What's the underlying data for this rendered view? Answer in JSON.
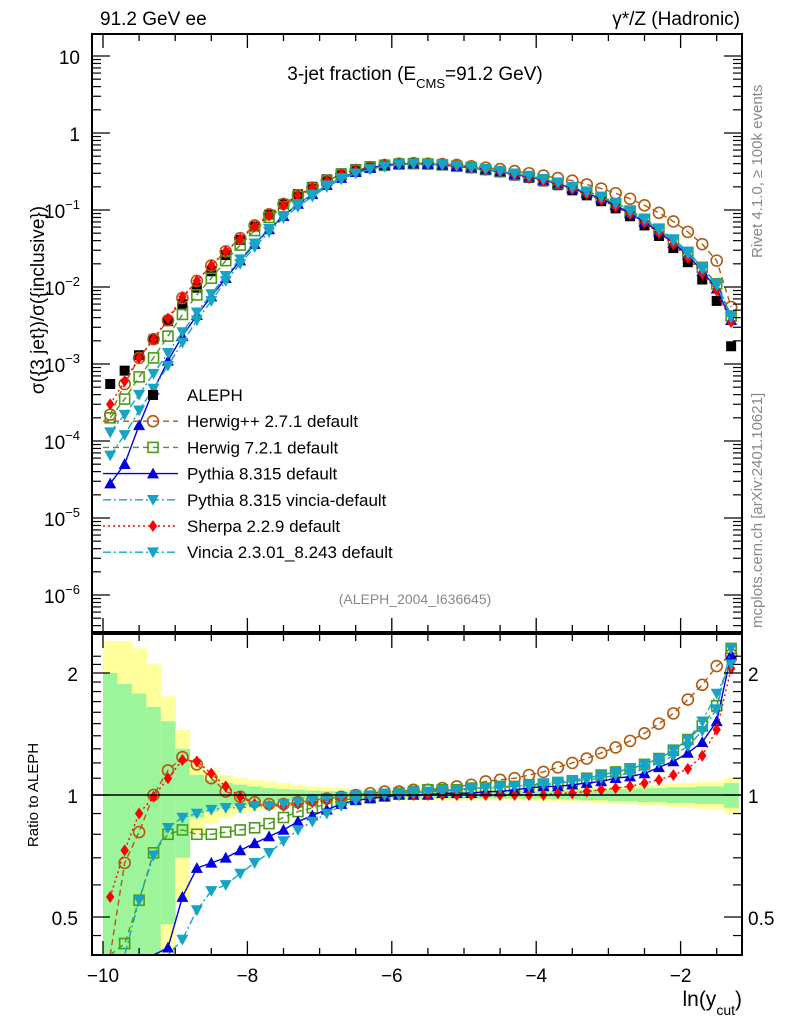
{
  "header": {
    "left_label": "91.2 GeV ee",
    "right_label": "γ*/Z (Hadronic)"
  },
  "side_labels": {
    "rivet": "Rivet 4.1.0, ≥ 100k events",
    "mcplots": "mcplots.cern.ch [arXiv:2401.10621]"
  },
  "colors": {
    "aleph": "#000000",
    "herwigpp": "#b05a10",
    "herwig7": "#4c9a1a",
    "pythia": "#0000e0",
    "pythia_vincia": "#17a3c6",
    "sherpa": "#ff0000",
    "vincia": "#17a3c6",
    "band_inner": "#9cf59a",
    "band_outer": "#ffff9c"
  },
  "chart_data": [
    {
      "type": "line",
      "panel": "main",
      "title_main": "3-jet fraction (E",
      "title_sub": "CMS",
      "title_tail": "=91.2 GeV)",
      "ylabel": "σ({3 jet})/σ({inclusive})",
      "xlabel_main": "ln(y",
      "xlabel_sub": "cut",
      "xlabel_tail": ")",
      "yscale": "log",
      "xlim": [
        -10.15,
        -1.1
      ],
      "ylim": [
        3e-07,
        20
      ],
      "ytick_labels": [
        {
          "v": 10,
          "base": "10",
          "exp": ""
        },
        {
          "v": 1,
          "base": "1",
          "exp": ""
        },
        {
          "v": 0.1,
          "base": "10",
          "exp": "−1"
        },
        {
          "v": 0.01,
          "base": "10",
          "exp": "−2"
        },
        {
          "v": 0.001,
          "base": "10",
          "exp": "−3"
        },
        {
          "v": 0.0001,
          "base": "10",
          "exp": "−4"
        },
        {
          "v": 1e-05,
          "base": "10",
          "exp": "−5"
        },
        {
          "v": 1e-06,
          "base": "10",
          "exp": "−6"
        }
      ],
      "xtick_labels": [
        "−10",
        "−8",
        "−6",
        "−4",
        "−2"
      ],
      "xtick_values": [
        -10,
        -8,
        -6,
        -4,
        -2
      ],
      "annotation": "(ALEPH_2004_I636645)",
      "legend_position": "middle-left",
      "x": [
        -9.9,
        -9.7,
        -9.5,
        -9.3,
        -9.1,
        -8.9,
        -8.7,
        -8.5,
        -8.3,
        -8.1,
        -7.9,
        -7.7,
        -7.5,
        -7.3,
        -7.1,
        -6.9,
        -6.7,
        -6.5,
        -6.3,
        -6.1,
        -5.9,
        -5.7,
        -5.5,
        -5.3,
        -5.1,
        -4.9,
        -4.7,
        -4.5,
        -4.3,
        -4.1,
        -3.9,
        -3.7,
        -3.5,
        -3.3,
        -3.1,
        -2.9,
        -2.7,
        -2.5,
        -2.3,
        -2.1,
        -1.9,
        -1.7,
        -1.5,
        -1.3
      ],
      "series": [
        {
          "name": "ALEPH",
          "key": "aleph",
          "marker": "square-filled",
          "line": "none",
          "values": [
            0.00055,
            0.00082,
            0.0013,
            0.0021,
            0.0036,
            0.006,
            0.0098,
            0.016,
            0.026,
            0.041,
            0.061,
            0.087,
            0.12,
            0.16,
            0.2,
            0.25,
            0.3,
            0.34,
            0.37,
            0.39,
            0.4,
            0.4,
            0.39,
            0.38,
            0.37,
            0.35,
            0.33,
            0.31,
            0.28,
            0.26,
            0.235,
            0.21,
            0.18,
            0.155,
            0.13,
            0.105,
            0.083,
            0.063,
            0.046,
            0.032,
            0.021,
            0.0125,
            0.0066,
            0.0017
          ]
        },
        {
          "name": "Herwig++ 2.7.1 default",
          "key": "herwigpp",
          "marker": "circle-open",
          "line": "dashed",
          "values": [
            0.00022,
            0.00055,
            0.0012,
            0.0021,
            0.0037,
            0.0072,
            0.012,
            0.019,
            0.029,
            0.043,
            0.063,
            0.088,
            0.12,
            0.155,
            0.195,
            0.24,
            0.29,
            0.33,
            0.36,
            0.385,
            0.4,
            0.405,
            0.4,
            0.395,
            0.385,
            0.37,
            0.355,
            0.34,
            0.32,
            0.3,
            0.28,
            0.26,
            0.24,
            0.215,
            0.19,
            0.165,
            0.14,
            0.115,
            0.092,
            0.071,
            0.052,
            0.036,
            0.022,
            0.0055
          ]
        },
        {
          "name": "Herwig 7.2.1 default",
          "key": "herwig7",
          "marker": "square-open",
          "line": "dashed",
          "values": [
            0.0002,
            0.00035,
            0.00068,
            0.0012,
            0.0023,
            0.0044,
            0.0079,
            0.013,
            0.022,
            0.035,
            0.054,
            0.08,
            0.11,
            0.15,
            0.19,
            0.24,
            0.29,
            0.33,
            0.36,
            0.38,
            0.395,
            0.4,
            0.395,
            0.385,
            0.37,
            0.355,
            0.335,
            0.315,
            0.29,
            0.27,
            0.245,
            0.22,
            0.195,
            0.17,
            0.145,
            0.12,
            0.095,
            0.075,
            0.056,
            0.04,
            0.028,
            0.018,
            0.011,
            0.0042
          ]
        },
        {
          "name": "Pythia 8.315 default",
          "key": "pythia",
          "marker": "triangle-up-filled",
          "line": "solid",
          "values": [
            2.8e-05,
            5e-05,
            0.00016,
            0.00046,
            0.0011,
            0.0023,
            0.0043,
            0.0075,
            0.013,
            0.022,
            0.036,
            0.056,
            0.083,
            0.12,
            0.16,
            0.21,
            0.26,
            0.31,
            0.35,
            0.38,
            0.395,
            0.4,
            0.395,
            0.385,
            0.37,
            0.355,
            0.335,
            0.315,
            0.29,
            0.27,
            0.245,
            0.22,
            0.19,
            0.165,
            0.14,
            0.115,
            0.09,
            0.07,
            0.052,
            0.037,
            0.026,
            0.016,
            0.0095,
            0.0037
          ]
        },
        {
          "name": "Pythia 8.315 vincia-default",
          "key": "pythia_vincia",
          "marker": "triangle-down-filled",
          "line": "dashdot",
          "values": [
            6.5e-05,
            0.00012,
            0.00025,
            0.00048,
            0.00095,
            0.0019,
            0.0037,
            0.0066,
            0.012,
            0.02,
            0.033,
            0.052,
            0.079,
            0.11,
            0.15,
            0.2,
            0.25,
            0.3,
            0.34,
            0.37,
            0.39,
            0.4,
            0.395,
            0.385,
            0.375,
            0.355,
            0.34,
            0.32,
            0.295,
            0.275,
            0.25,
            0.225,
            0.195,
            0.17,
            0.145,
            0.12,
            0.095,
            0.075,
            0.055,
            0.04,
            0.027,
            0.017,
            0.0105,
            0.004
          ]
        },
        {
          "name": "Sherpa 2.2.9 default",
          "key": "sherpa",
          "marker": "diamond-filled",
          "line": "dotted",
          "values": [
            0.0003,
            0.0006,
            0.0012,
            0.0021,
            0.0039,
            0.0074,
            0.012,
            0.019,
            0.029,
            0.042,
            0.061,
            0.085,
            0.115,
            0.155,
            0.195,
            0.24,
            0.29,
            0.33,
            0.36,
            0.385,
            0.395,
            0.4,
            0.395,
            0.385,
            0.37,
            0.35,
            0.33,
            0.31,
            0.285,
            0.26,
            0.24,
            0.215,
            0.185,
            0.16,
            0.135,
            0.11,
            0.088,
            0.068,
            0.05,
            0.036,
            0.024,
            0.015,
            0.009,
            0.0035
          ]
        },
        {
          "name": "Vincia 2.3.01_8.243 default",
          "key": "vincia",
          "marker": "triangle-down-filled",
          "line": "dashdot",
          "values": [
            0.00013,
            0.00022,
            0.0004,
            0.00075,
            0.0014,
            0.0026,
            0.0047,
            0.0081,
            0.014,
            0.023,
            0.037,
            0.057,
            0.084,
            0.12,
            0.16,
            0.21,
            0.26,
            0.3,
            0.34,
            0.37,
            0.39,
            0.4,
            0.395,
            0.39,
            0.375,
            0.36,
            0.34,
            0.32,
            0.3,
            0.28,
            0.255,
            0.23,
            0.2,
            0.175,
            0.15,
            0.125,
            0.1,
            0.078,
            0.058,
            0.042,
            0.029,
            0.018,
            0.011,
            0.0043
          ]
        }
      ]
    },
    {
      "type": "line",
      "panel": "ratio",
      "ylabel": "Ratio to ALEPH",
      "yscale": "log",
      "ylim": [
        0.42,
        2.3
      ],
      "ytick_labels": [
        {
          "v": 2,
          "label": "2"
        },
        {
          "v": 1,
          "label": "1"
        },
        {
          "v": 0.5,
          "label": "0.5"
        }
      ],
      "reference_line": 1,
      "x": [
        -9.9,
        -9.7,
        -9.5,
        -9.3,
        -9.1,
        -8.9,
        -8.7,
        -8.5,
        -8.3,
        -8.1,
        -7.9,
        -7.7,
        -7.5,
        -7.3,
        -7.1,
        -6.9,
        -6.7,
        -6.5,
        -6.3,
        -6.1,
        -5.9,
        -5.7,
        -5.5,
        -5.3,
        -5.1,
        -4.9,
        -4.7,
        -4.5,
        -4.3,
        -4.1,
        -3.9,
        -3.7,
        -3.5,
        -3.3,
        -3.1,
        -2.9,
        -2.7,
        -2.5,
        -2.3,
        -2.1,
        -1.9,
        -1.7,
        -1.5,
        -1.3
      ],
      "band_inner_halfwidth": [
        1.0,
        0.88,
        0.78,
        0.65,
        0.52,
        0.3,
        0.12,
        0.09,
        0.07,
        0.06,
        0.05,
        0.04,
        0.035,
        0.03,
        0.025,
        0.022,
        0.02,
        0.02,
        0.02,
        0.02,
        0.02,
        0.02,
        0.02,
        0.02,
        0.02,
        0.02,
        0.02,
        0.02,
        0.02,
        0.02,
        0.02,
        0.025,
        0.025,
        0.03,
        0.03,
        0.035,
        0.035,
        0.04,
        0.04,
        0.045,
        0.045,
        0.05,
        0.05,
        0.07
      ],
      "band_outer_halfwidth": [
        1.4,
        1.4,
        1.3,
        1.1,
        0.75,
        0.45,
        0.2,
        0.15,
        0.12,
        0.1,
        0.09,
        0.08,
        0.07,
        0.06,
        0.05,
        0.045,
        0.04,
        0.035,
        0.035,
        0.03,
        0.03,
        0.03,
        0.03,
        0.03,
        0.03,
        0.03,
        0.03,
        0.03,
        0.03,
        0.03,
        0.035,
        0.035,
        0.04,
        0.04,
        0.045,
        0.05,
        0.05,
        0.055,
        0.06,
        0.065,
        0.07,
        0.075,
        0.08,
        0.1
      ],
      "series": [
        {
          "key": "herwigpp",
          "marker": "circle-open",
          "line": "dashed",
          "values": [
            0.4,
            0.68,
            0.81,
            1.0,
            1.15,
            1.24,
            1.19,
            1.1,
            1.02,
            0.99,
            0.96,
            0.95,
            0.95,
            0.96,
            0.97,
            0.98,
            0.99,
            1.0,
            1.01,
            1.02,
            1.02,
            1.03,
            1.03,
            1.04,
            1.05,
            1.06,
            1.08,
            1.09,
            1.1,
            1.12,
            1.14,
            1.17,
            1.2,
            1.23,
            1.27,
            1.31,
            1.36,
            1.42,
            1.5,
            1.59,
            1.72,
            1.87,
            2.08,
            2.22
          ]
        },
        {
          "key": "herwig7",
          "marker": "square-open",
          "line": "dashed",
          "values": [
            0.36,
            0.43,
            0.55,
            0.72,
            0.8,
            0.82,
            0.8,
            0.8,
            0.81,
            0.82,
            0.83,
            0.85,
            0.88,
            0.91,
            0.93,
            0.95,
            0.97,
            0.98,
            0.99,
            1.0,
            1.01,
            1.02,
            1.03,
            1.03,
            1.03,
            1.04,
            1.04,
            1.05,
            1.05,
            1.06,
            1.06,
            1.07,
            1.08,
            1.1,
            1.12,
            1.14,
            1.16,
            1.19,
            1.23,
            1.29,
            1.37,
            1.48,
            1.66,
            2.3
          ]
        },
        {
          "key": "pythia",
          "marker": "triangle-up-filled",
          "line": "solid",
          "values": [
            0.05,
            0.06,
            0.12,
            0.22,
            0.42,
            0.56,
            0.66,
            0.68,
            0.7,
            0.73,
            0.76,
            0.79,
            0.82,
            0.86,
            0.89,
            0.92,
            0.95,
            0.97,
            0.98,
            0.99,
            1.0,
            1.0,
            1.0,
            1.01,
            1.01,
            1.01,
            1.02,
            1.02,
            1.03,
            1.04,
            1.05,
            1.05,
            1.06,
            1.07,
            1.08,
            1.1,
            1.11,
            1.13,
            1.17,
            1.21,
            1.27,
            1.35,
            1.52,
            2.22
          ]
        },
        {
          "key": "pythia_vincia",
          "marker": "triangle-down-filled",
          "line": "dashdot",
          "values": [
            0.12,
            0.15,
            0.19,
            0.23,
            0.37,
            0.44,
            0.52,
            0.58,
            0.6,
            0.64,
            0.68,
            0.72,
            0.77,
            0.82,
            0.86,
            0.9,
            0.94,
            0.97,
            0.99,
            1.0,
            1.0,
            1.01,
            1.02,
            1.02,
            1.03,
            1.03,
            1.04,
            1.04,
            1.05,
            1.05,
            1.06,
            1.07,
            1.08,
            1.09,
            1.1,
            1.12,
            1.13,
            1.16,
            1.2,
            1.25,
            1.32,
            1.44,
            1.63,
            2.3
          ]
        },
        {
          "key": "sherpa",
          "marker": "diamond-filled",
          "line": "dotted",
          "values": [
            0.56,
            0.73,
            0.9,
            0.99,
            1.1,
            1.22,
            1.21,
            1.13,
            1.05,
            0.99,
            0.95,
            0.94,
            0.94,
            0.95,
            0.96,
            0.97,
            0.98,
            0.99,
            0.99,
            1.0,
            1.0,
            1.0,
            1.0,
            1.0,
            1.0,
            1.0,
            1.0,
            1.0,
            1.0,
            1.0,
            1.0,
            1.01,
            1.01,
            1.02,
            1.03,
            1.04,
            1.05,
            1.07,
            1.09,
            1.12,
            1.16,
            1.25,
            1.45,
            2.05
          ]
        },
        {
          "key": "vincia",
          "marker": "triangle-down-filled",
          "line": "dashdot",
          "values": [
            0.24,
            0.36,
            0.55,
            0.71,
            0.83,
            0.88,
            0.9,
            0.92,
            0.93,
            0.93,
            0.94,
            0.94,
            0.95,
            0.96,
            0.97,
            0.98,
            0.99,
            1.0,
            1.0,
            1.01,
            1.01,
            1.02,
            1.02,
            1.03,
            1.03,
            1.04,
            1.04,
            1.05,
            1.05,
            1.06,
            1.07,
            1.08,
            1.09,
            1.1,
            1.12,
            1.14,
            1.16,
            1.19,
            1.23,
            1.29,
            1.37,
            1.52,
            1.78,
            2.1
          ]
        }
      ]
    }
  ]
}
